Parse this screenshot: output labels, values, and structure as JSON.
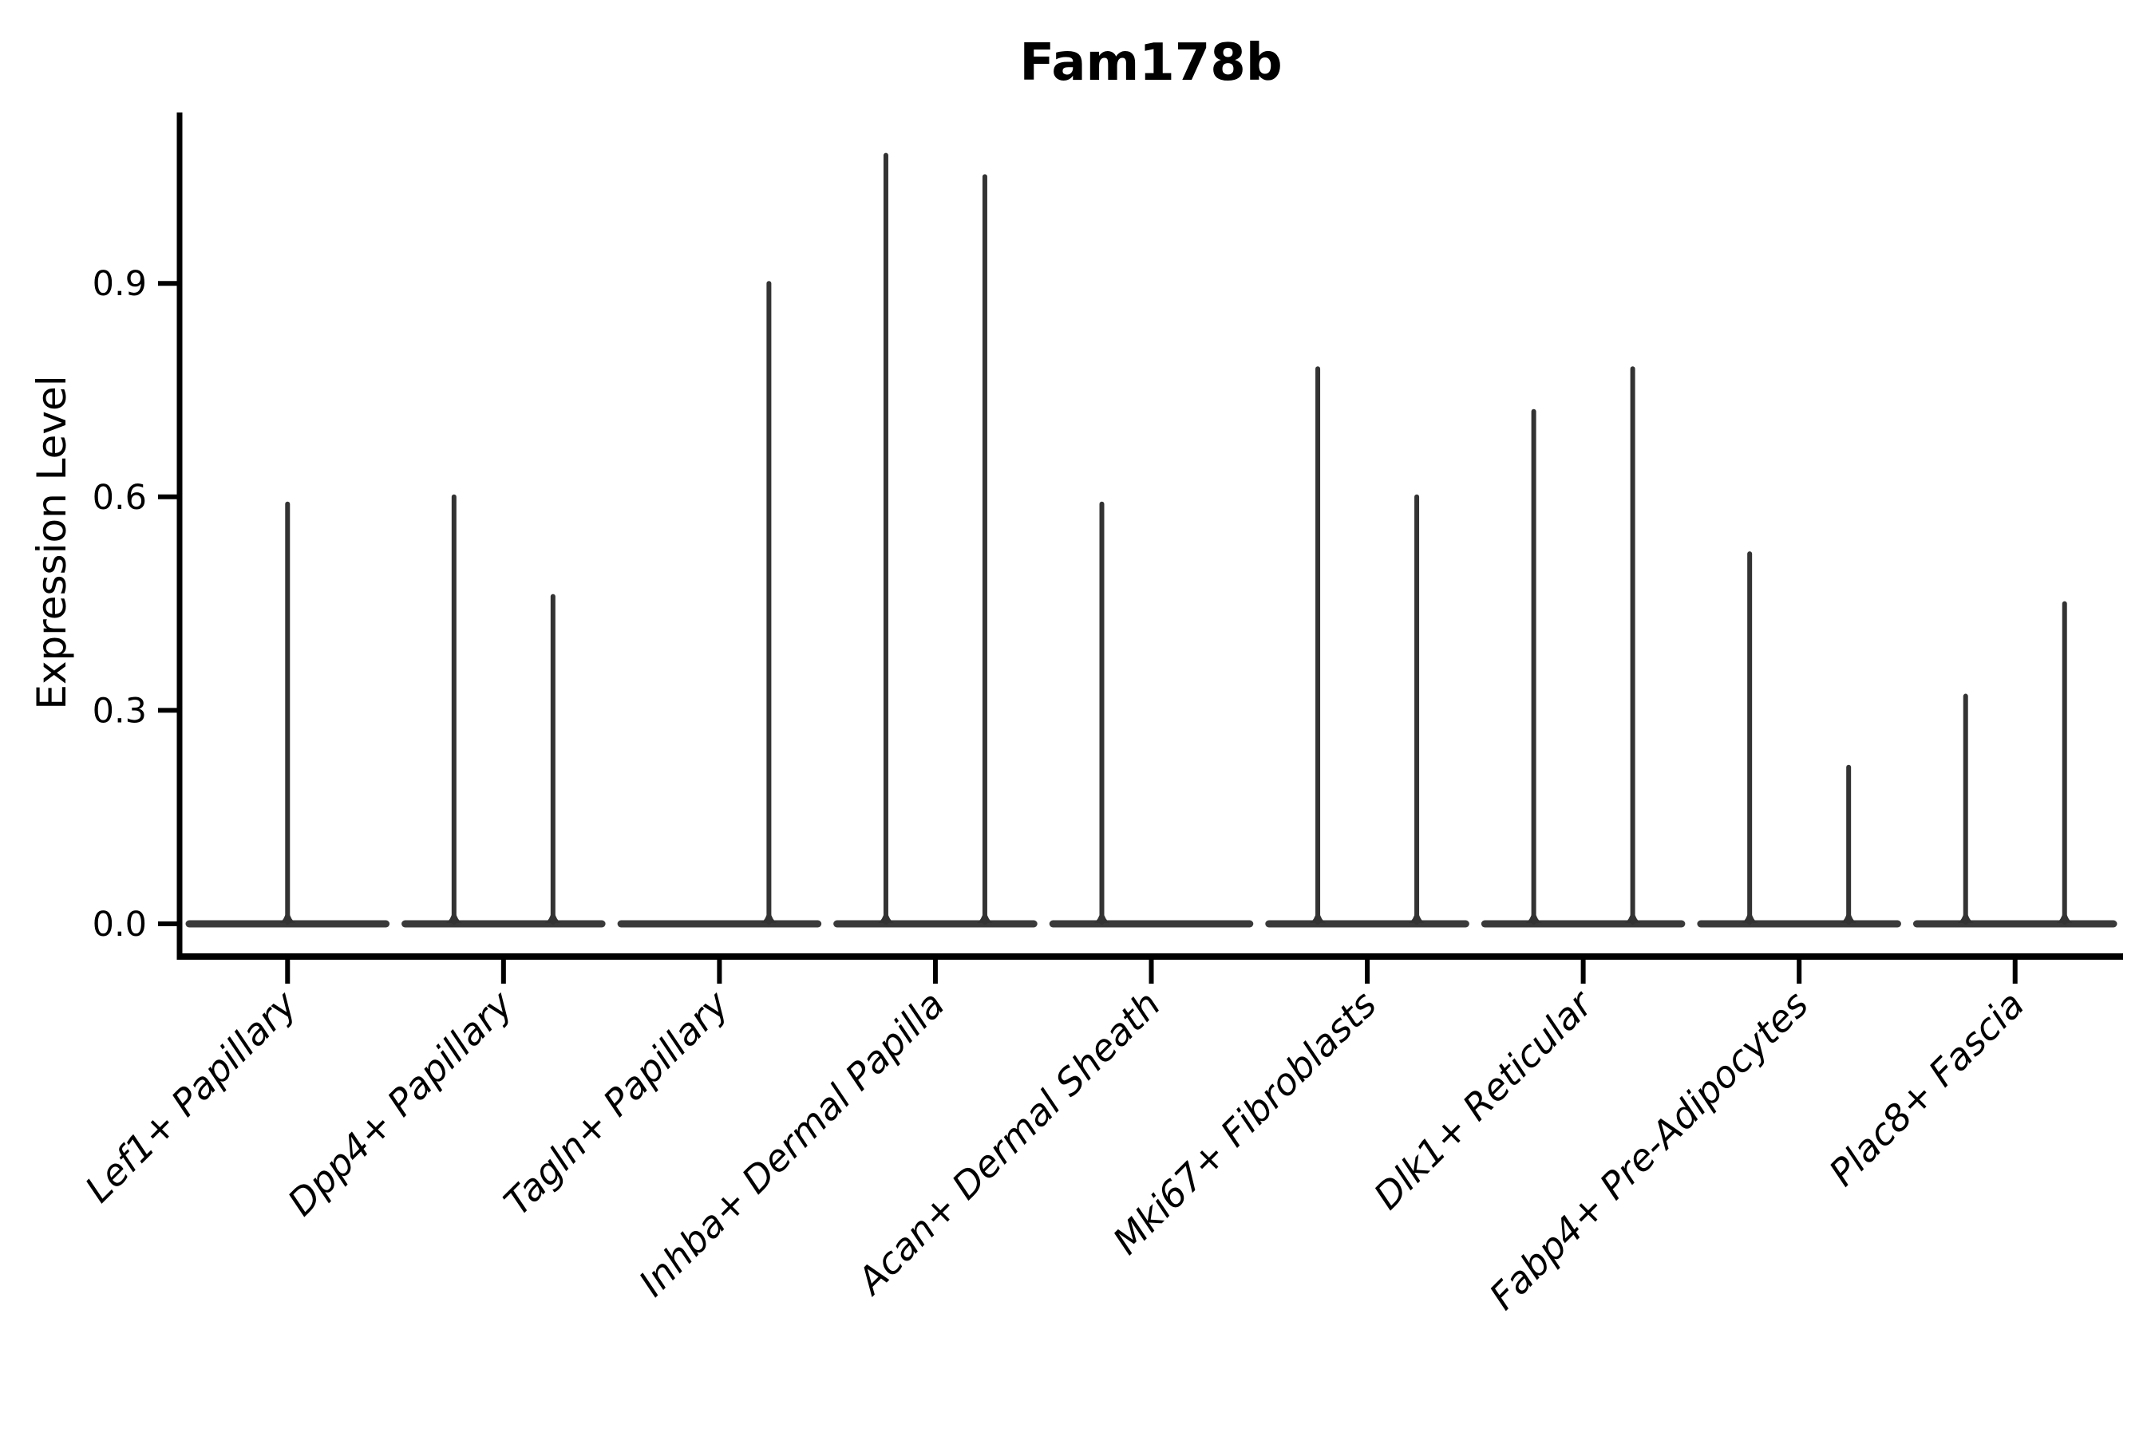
{
  "figure": {
    "background": "#ffffff"
  },
  "chart_data": {
    "type": "violin",
    "title": "Fam178b",
    "xlabel": "",
    "ylabel": "Expression Level",
    "y_ticks": [
      "0.0",
      "0.3",
      "0.6",
      "0.9"
    ],
    "y_tick_values": [
      0.0,
      0.3,
      0.6,
      0.9
    ],
    "ylim": [
      0.0,
      1.14
    ],
    "grid": false,
    "legend": false,
    "baseline_value": 0.0,
    "categories": [
      "Lef1+ Papillary",
      "Dpp4+ Papillary",
      "Tagln+ Papillary",
      "Inhba+ Dermal Papilla",
      "Acan+ Dermal Sheath",
      "Mki67+ Fibroblasts",
      "Dlk1+ Reticular",
      "Fabp4+ Pre-Adipocytes",
      "Plac8+ Fascia"
    ],
    "series": [
      {
        "category": "Lef1+ Papillary",
        "violins": [
          {
            "side": "center",
            "max_expression": 0.59
          }
        ]
      },
      {
        "category": "Dpp4+ Papillary",
        "violins": [
          {
            "side": "left",
            "max_expression": 0.6
          },
          {
            "side": "right",
            "max_expression": 0.46
          }
        ]
      },
      {
        "category": "Tagln+ Papillary",
        "violins": [
          {
            "side": "right",
            "max_expression": 0.9
          }
        ]
      },
      {
        "category": "Inhba+ Dermal Papilla",
        "violins": [
          {
            "side": "left",
            "max_expression": 1.08
          },
          {
            "side": "right",
            "max_expression": 1.05
          }
        ]
      },
      {
        "category": "Acan+ Dermal Sheath",
        "violins": [
          {
            "side": "left",
            "max_expression": 0.59
          }
        ]
      },
      {
        "category": "Mki67+ Fibroblasts",
        "violins": [
          {
            "side": "left",
            "max_expression": 0.78
          },
          {
            "side": "right",
            "max_expression": 0.6
          }
        ]
      },
      {
        "category": "Dlk1+ Reticular",
        "violins": [
          {
            "side": "left",
            "max_expression": 0.72
          },
          {
            "side": "right",
            "max_expression": 0.78
          }
        ]
      },
      {
        "category": "Fabp4+ Pre-Adipocytes",
        "violins": [
          {
            "side": "left",
            "max_expression": 0.52
          },
          {
            "side": "right",
            "max_expression": 0.22
          }
        ]
      },
      {
        "category": "Plac8+ Fascia",
        "violins": [
          {
            "side": "left",
            "max_expression": 0.32
          },
          {
            "side": "right",
            "max_expression": 0.45
          }
        ]
      }
    ],
    "colors": {
      "violin_line": "#333333",
      "violin_base": "#3a3a3a",
      "axis": "#000000",
      "text": "#000000",
      "background": "#ffffff"
    }
  }
}
